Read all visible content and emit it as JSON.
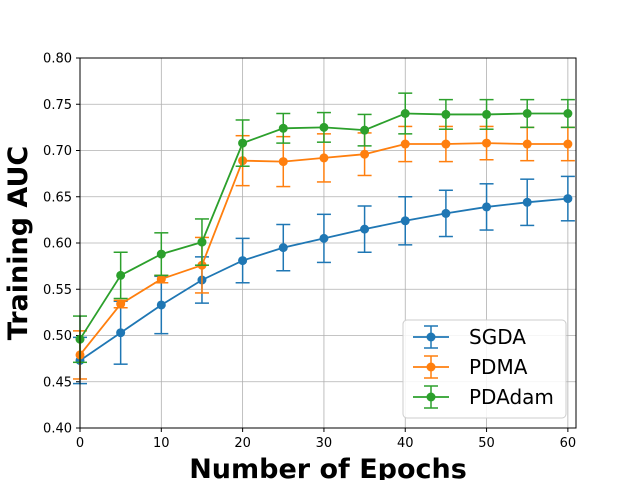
{
  "chart_data": {
    "type": "line",
    "xlabel": "Number of Epochs",
    "ylabel": "Training AUC",
    "xlim": [
      0,
      61
    ],
    "ylim": [
      0.4,
      0.8
    ],
    "xticks": [
      "0",
      "10",
      "20",
      "30",
      "40",
      "50",
      "60"
    ],
    "yticks": [
      "0.40",
      "0.45",
      "0.50",
      "0.55",
      "0.60",
      "0.65",
      "0.70",
      "0.75",
      "0.80"
    ],
    "grid": true,
    "legend_position": "bottom-right",
    "x": [
      0,
      5,
      10,
      15,
      20,
      25,
      30,
      35,
      40,
      45,
      50,
      55,
      60
    ],
    "series": [
      {
        "name": "SGDA",
        "color": "#1f77b4",
        "values": [
          0.473,
          0.503,
          0.533,
          0.56,
          0.581,
          0.595,
          0.605,
          0.615,
          0.624,
          0.632,
          0.639,
          0.644,
          0.648
        ],
        "errors": [
          0.025,
          0.034,
          0.031,
          0.025,
          0.024,
          0.025,
          0.026,
          0.025,
          0.026,
          0.025,
          0.025,
          0.025,
          0.024
        ]
      },
      {
        "name": "PDMA",
        "color": "#ff7f0e",
        "values": [
          0.479,
          0.534,
          0.561,
          0.576,
          0.689,
          0.688,
          0.692,
          0.696,
          0.707,
          0.707,
          0.708,
          0.707,
          0.707
        ],
        "errors": [
          0.026,
          0.004,
          0.004,
          0.03,
          0.027,
          0.027,
          0.026,
          0.023,
          0.019,
          0.019,
          0.018,
          0.018,
          0.018
        ]
      },
      {
        "name": "PDAdam",
        "color": "#2ca02c",
        "values": [
          0.496,
          0.565,
          0.588,
          0.601,
          0.708,
          0.724,
          0.725,
          0.722,
          0.74,
          0.739,
          0.739,
          0.74,
          0.74
        ],
        "errors": [
          0.025,
          0.025,
          0.023,
          0.025,
          0.025,
          0.016,
          0.016,
          0.017,
          0.022,
          0.016,
          0.016,
          0.015,
          0.015
        ]
      }
    ]
  }
}
